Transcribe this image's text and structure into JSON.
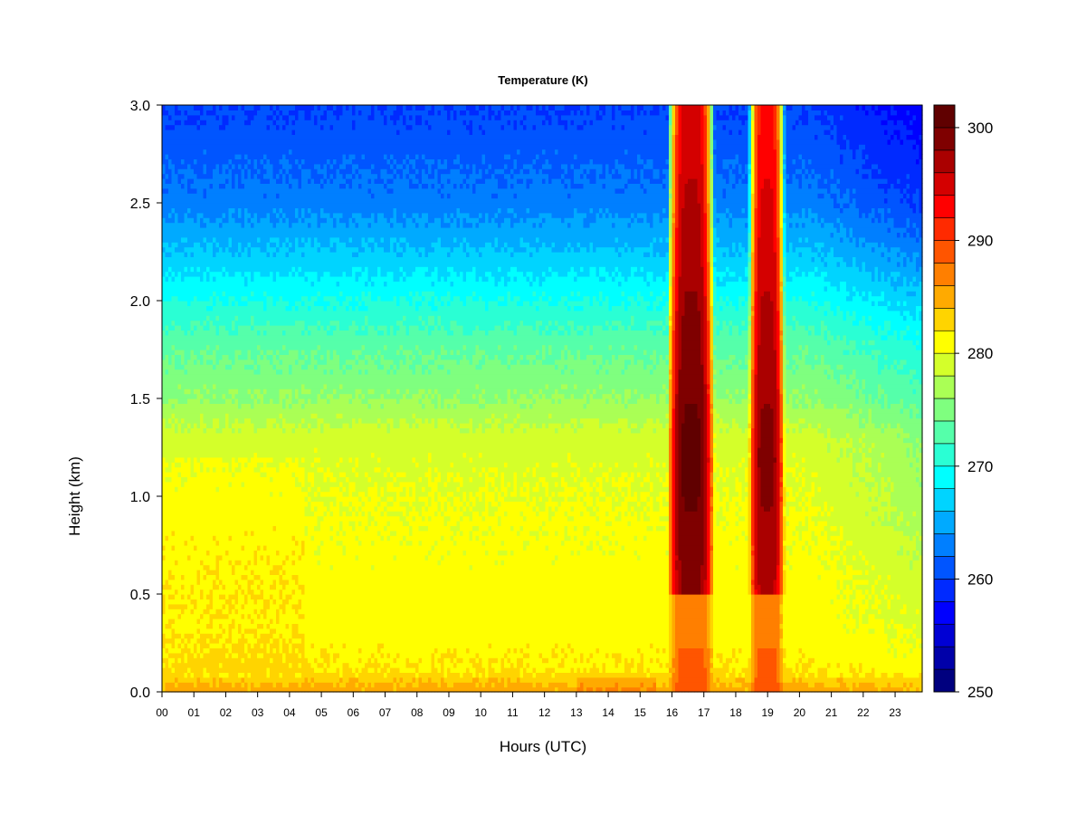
{
  "chart_data": {
    "type": "heatmap",
    "title": "Temperature (K)",
    "xlabel": "Hours (UTC)",
    "ylabel": "Height (km)",
    "x_ticks": [
      "00",
      "01",
      "02",
      "03",
      "04",
      "05",
      "06",
      "07",
      "08",
      "09",
      "10",
      "11",
      "12",
      "13",
      "14",
      "15",
      "16",
      "17",
      "18",
      "19",
      "20",
      "21",
      "22",
      "23"
    ],
    "xlim": [
      0,
      23.85
    ],
    "y_ticks": [
      "0.0",
      "0.5",
      "1.0",
      "1.5",
      "2.0",
      "2.5",
      "3.0"
    ],
    "ylim": [
      0,
      3.0
    ],
    "colorbar": {
      "ticks": [
        "250",
        "260",
        "270",
        "280",
        "290",
        "300"
      ],
      "range": [
        250,
        302
      ],
      "levels": 26,
      "colors": [
        "#00007F",
        "#0000A9",
        "#0000D4",
        "#0000FF",
        "#002AFF",
        "#0055FF",
        "#007FFF",
        "#00AAFF",
        "#00D4FF",
        "#00FFFF",
        "#2AFFD4",
        "#55FFAA",
        "#7FFF7F",
        "#AAFF55",
        "#D4FF2A",
        "#FFFF00",
        "#FFD400",
        "#FFAA00",
        "#FF7F00",
        "#FF5500",
        "#FF2A00",
        "#FF0000",
        "#D40000",
        "#AA0000",
        "#7F0000",
        "#600000"
      ]
    },
    "profile_height_km": [
      0.0,
      0.05,
      0.1,
      0.3,
      0.5,
      0.8,
      1.0,
      1.3,
      1.5,
      1.8,
      2.0,
      2.2,
      2.5,
      2.8,
      3.0
    ],
    "profile_temperature_K": [
      285,
      284,
      282,
      281,
      281,
      280.5,
      280,
      279,
      276,
      273,
      270,
      267,
      263,
      261,
      260
    ],
    "warm_bands": [
      {
        "x_start": 15.85,
        "x_end": 17.35,
        "peak_K": 301,
        "peak_height_km": 1.2
      },
      {
        "x_start": 18.4,
        "x_end": 19.55,
        "peak_K": 299,
        "peak_height_km": 1.2
      }
    ],
    "late_cooling_start_hour": 20.3
  }
}
